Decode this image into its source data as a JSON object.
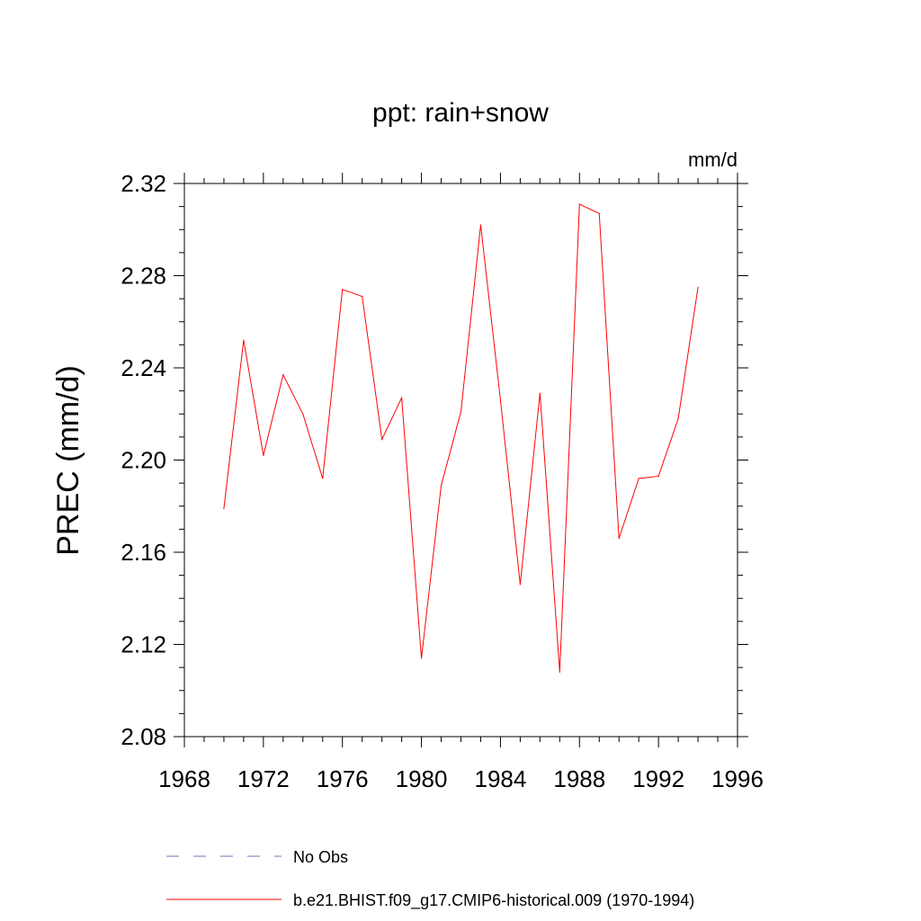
{
  "chart_data": {
    "type": "line",
    "title": "ppt: rain+snow",
    "units": "mm/d",
    "xlabel": "",
    "ylabel": "PREC  (mm/d)",
    "xlim": [
      1968,
      1996
    ],
    "ylim": [
      2.08,
      2.32
    ],
    "xticks": [
      1968,
      1972,
      1976,
      1980,
      1984,
      1988,
      1992,
      1996
    ],
    "xtick_labels": [
      "1968",
      "1972",
      "1976",
      "1980",
      "1984",
      "1988",
      "1992",
      "1996"
    ],
    "yticks": [
      2.08,
      2.12,
      2.16,
      2.2,
      2.24,
      2.28,
      2.32
    ],
    "ytick_labels": [
      "2.08",
      "2.12",
      "2.16",
      "2.20",
      "2.24",
      "2.28",
      "2.32"
    ],
    "grid": false,
    "legend_position": "bottom",
    "series": [
      {
        "name": "No Obs",
        "color": "#7070b8",
        "style": "dashed",
        "x": [],
        "values": []
      },
      {
        "name": "b.e21.BHIST.f09_g17.CMIP6-historical.009 (1970-1994)",
        "color": "#ff0000",
        "style": "solid",
        "x": [
          1970,
          1971,
          1972,
          1973,
          1974,
          1975,
          1976,
          1977,
          1978,
          1979,
          1980,
          1981,
          1982,
          1983,
          1984,
          1985,
          1986,
          1987,
          1988,
          1989,
          1990,
          1991,
          1992,
          1993,
          1994
        ],
        "values": [
          2.179,
          2.252,
          2.202,
          2.237,
          2.22,
          2.192,
          2.274,
          2.271,
          2.209,
          2.227,
          2.114,
          2.189,
          2.221,
          2.302,
          2.226,
          2.146,
          2.229,
          2.108,
          2.311,
          2.307,
          2.166,
          2.192,
          2.193,
          2.218,
          2.275
        ]
      }
    ]
  }
}
